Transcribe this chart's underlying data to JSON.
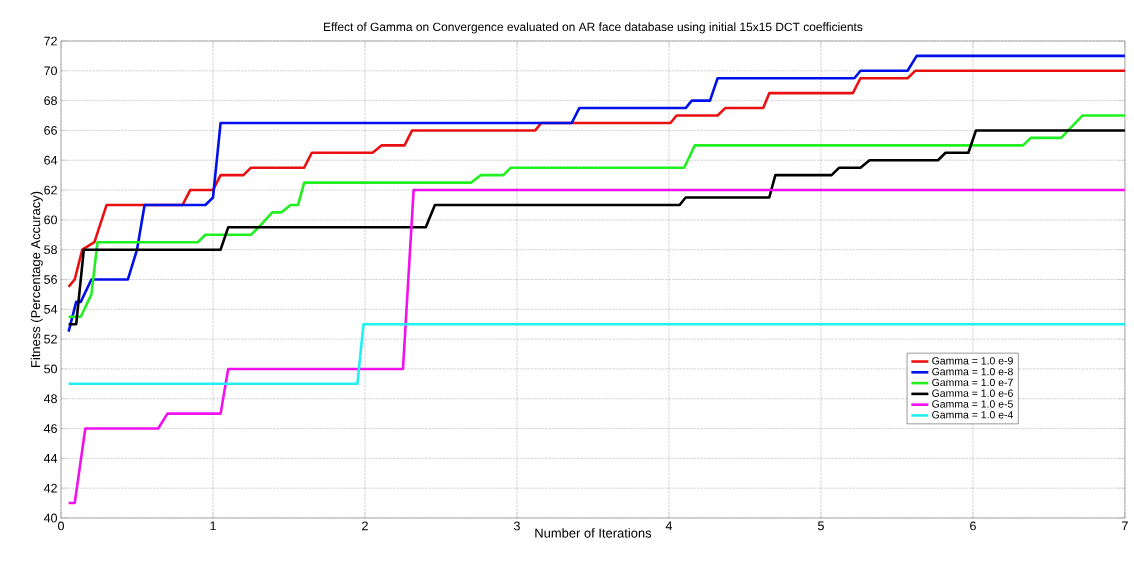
{
  "chart_data": {
    "type": "line",
    "title": "Effect of Gamma on Convergence evaluated on AR face database using initial 15x15 DCT coefficients",
    "xlabel": "Number of Iterations",
    "ylabel": "Fitness (Percentage Accuracy)",
    "xlim": [
      0,
      7
    ],
    "ylim": [
      40,
      72
    ],
    "xticks": [
      0,
      1,
      2,
      3,
      4,
      5,
      6,
      7
    ],
    "yticks": [
      40,
      42,
      44,
      46,
      48,
      50,
      52,
      54,
      56,
      58,
      60,
      62,
      64,
      66,
      68,
      70,
      72
    ],
    "grid": true,
    "legend": "bottom right",
    "line_style": "solid",
    "series": [
      {
        "name": "Gamma = 1.0 e-9",
        "color": "#e81010",
        "x": [
          0.05,
          0.09,
          0.14,
          0.22,
          0.3,
          0.8,
          0.85,
          1.0,
          1.05,
          1.2,
          1.25,
          1.6,
          1.65,
          2.05,
          2.11,
          2.26,
          2.31,
          3.12,
          3.16,
          4.01,
          4.05,
          4.32,
          4.37,
          4.62,
          4.66,
          5.21,
          5.26,
          5.57,
          5.62,
          7
        ],
        "values": [
          55.5,
          56,
          58,
          58.5,
          61,
          61,
          62,
          62,
          63,
          63,
          63.5,
          63.5,
          64.5,
          64.5,
          65,
          65,
          66,
          66,
          66.5,
          66.5,
          67,
          67,
          67.5,
          67.5,
          68.5,
          68.5,
          69.5,
          69.5,
          70,
          70
        ]
      },
      {
        "name": "Gamma = 1.0 e-8",
        "color": "#0010e8",
        "x": [
          0.05,
          0.1,
          0.13,
          0.2,
          0.44,
          0.5,
          0.55,
          0.95,
          1.0,
          1.05,
          3.36,
          3.41,
          4.11,
          4.15,
          4.27,
          4.32,
          5.22,
          5.26,
          5.57,
          5.63,
          7
        ],
        "values": [
          52.5,
          54.5,
          54.5,
          56,
          56,
          58,
          61,
          61,
          61.5,
          66.5,
          66.5,
          67.5,
          67.5,
          68,
          68,
          69.5,
          69.5,
          70,
          70,
          71,
          71
        ]
      },
      {
        "name": "Gamma = 1.0 e-7",
        "color": "#20f020",
        "x": [
          0.05,
          0.13,
          0.2,
          0.24,
          0.9,
          0.95,
          1.25,
          1.3,
          1.39,
          1.45,
          1.51,
          1.56,
          1.6,
          2.7,
          2.76,
          2.91,
          2.96,
          4.1,
          4.17,
          6.33,
          6.38,
          6.58,
          6.72,
          7
        ],
        "values": [
          53.5,
          53.5,
          55,
          58.5,
          58.5,
          59,
          59,
          59.5,
          60.5,
          60.5,
          61,
          61,
          62.5,
          62.5,
          63,
          63,
          63.5,
          63.5,
          65,
          65,
          65.5,
          65.5,
          67,
          67
        ]
      },
      {
        "name": "Gamma = 1.0 e-6",
        "color": "#000000",
        "x": [
          0.05,
          0.1,
          0.12,
          0.15,
          1.05,
          1.1,
          2.4,
          2.46,
          4.07,
          4.11,
          4.66,
          4.7,
          5.07,
          5.12,
          5.26,
          5.32,
          5.77,
          5.82,
          5.97,
          6.02,
          7
        ],
        "values": [
          53,
          53,
          55,
          58,
          58,
          59.5,
          59.5,
          61,
          61,
          61.5,
          61.5,
          63,
          63,
          63.5,
          63.5,
          64,
          64,
          64.5,
          64.5,
          66,
          66
        ]
      },
      {
        "name": "Gamma = 1.0 e-5",
        "color": "#f010f0",
        "x": [
          0.05,
          0.09,
          0.16,
          0.64,
          0.7,
          1.05,
          1.1,
          2.25,
          2.32,
          7
        ],
        "values": [
          41,
          41,
          46,
          46,
          47,
          47,
          50,
          50,
          62,
          62
        ]
      },
      {
        "name": "Gamma = 1.0 e-4",
        "color": "#20f0f0",
        "x": [
          0.05,
          1.95,
          1.99,
          7
        ],
        "values": [
          49,
          49,
          53,
          53
        ]
      }
    ]
  }
}
